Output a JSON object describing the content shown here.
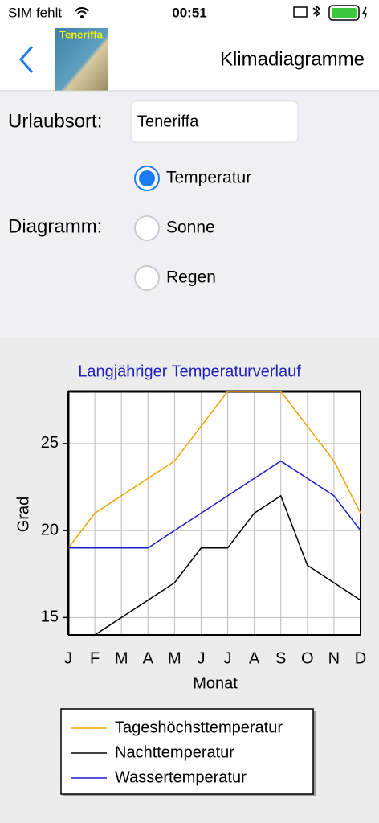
{
  "status_bar": {
    "carrier": "SIM fehlt",
    "time": "00:51"
  },
  "nav": {
    "title": "Klimadiagramme",
    "thumbnail_label": "Teneriffa"
  },
  "form": {
    "location_label": "Urlaubsort:",
    "location_value": "Teneriffa",
    "diagram_label": "Diagramm:",
    "options": [
      "Temperatur",
      "Sonne",
      "Regen"
    ],
    "selected": 0
  },
  "chart_data": {
    "type": "line",
    "title": "Langjähriger Temperaturverlauf",
    "x_label": "Monat",
    "y_label": "Grad",
    "categories": [
      "J",
      "F",
      "M",
      "A",
      "M",
      "J",
      "J",
      "A",
      "S",
      "O",
      "N",
      "D"
    ],
    "series": [
      {
        "name": "Tageshöchsttemperatur",
        "color": "#f0a500",
        "values": [
          19,
          21,
          22,
          23,
          24,
          26,
          28,
          28,
          28,
          26,
          24,
          21
        ]
      },
      {
        "name": "Nachttemperatur",
        "color": "#000000",
        "values": [
          14,
          14,
          15,
          16,
          17,
          19,
          19,
          21,
          22,
          18,
          17,
          16
        ]
      },
      {
        "name": "Wassertemperatur",
        "color": "#1f1fc8",
        "values": [
          19,
          19,
          19,
          19,
          20,
          21,
          22,
          23,
          24,
          23,
          22,
          20
        ]
      }
    ],
    "ylim": [
      14,
      28
    ],
    "yticks": [
      15,
      20,
      25
    ],
    "grid": true,
    "legend": "bottom"
  }
}
